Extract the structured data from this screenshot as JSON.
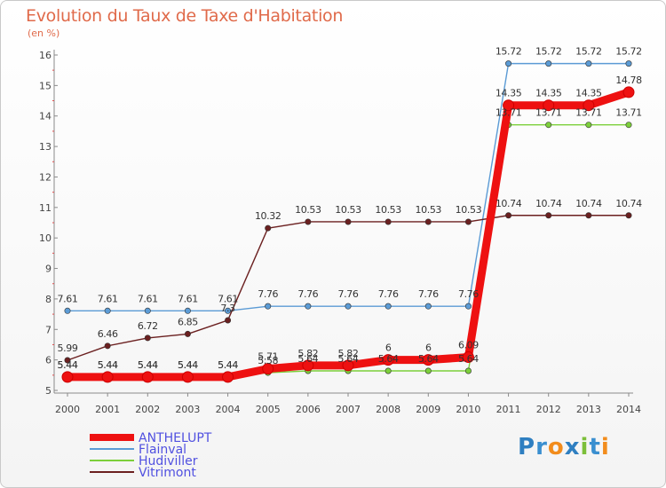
{
  "chart_data": {
    "type": "line",
    "title": "Evolution du Taux de Taxe d'Habitation",
    "unit": "(en %)",
    "x": [
      "2000",
      "2001",
      "2002",
      "2003",
      "2004",
      "2005",
      "2006",
      "2007",
      "2008",
      "2009",
      "2010",
      "2011",
      "2012",
      "2013",
      "2014"
    ],
    "ylim": [
      5,
      16
    ],
    "yticks": [
      5,
      6,
      7,
      8,
      9,
      10,
      11,
      12,
      13,
      14,
      15,
      16
    ],
    "series": [
      {
        "name": "ANTHELUPT",
        "color": "#ee1111",
        "values": [
          5.44,
          5.44,
          5.44,
          5.44,
          5.44,
          5.71,
          5.82,
          5.82,
          6,
          6,
          6.09,
          14.35,
          14.35,
          14.35,
          14.78
        ],
        "labels": [
          "5.44",
          "5.44",
          "5.44",
          "5.44",
          "5.44",
          "5.71",
          "5.82",
          "5.82",
          "6",
          "6",
          "6.09",
          "14.35",
          "14.35",
          "14.35",
          "14.78"
        ]
      },
      {
        "name": "Flainval",
        "color": "#5b9bd5",
        "values": [
          7.61,
          7.61,
          7.61,
          7.61,
          7.61,
          7.76,
          7.76,
          7.76,
          7.76,
          7.76,
          7.76,
          15.72,
          15.72,
          15.72,
          15.72
        ],
        "labels": [
          "7.61",
          "7.61",
          "7.61",
          "7.61",
          "7.61",
          "7.76",
          "7.76",
          "7.76",
          "7.76",
          "7.76",
          "7.76",
          "15.72",
          "15.72",
          "15.72",
          "15.72"
        ]
      },
      {
        "name": "Hudiviller",
        "color": "#7ccf3a",
        "values": [
          5.44,
          5.44,
          5.44,
          5.44,
          5.44,
          5.58,
          5.64,
          5.64,
          5.64,
          5.64,
          5.64,
          13.71,
          13.71,
          13.71,
          13.71
        ],
        "labels": [
          "5.44",
          "5.44",
          "5.44",
          "5.44",
          "5.44",
          "5.58",
          "5.64",
          "5.64",
          "5.64",
          "5.64",
          "5.64",
          "13.71",
          "13.71",
          "13.71",
          "13.71"
        ]
      },
      {
        "name": "Vitrimont",
        "color": "#6b2020",
        "values": [
          5.99,
          6.46,
          6.72,
          6.85,
          7.3,
          10.32,
          10.53,
          10.53,
          10.53,
          10.53,
          10.53,
          10.74,
          10.74,
          10.74,
          10.74
        ],
        "labels": [
          "5.99",
          "6.46",
          "6.72",
          "6.85",
          "7.3",
          "10.32",
          "10.53",
          "10.53",
          "10.53",
          "10.53",
          "10.53",
          "10.74",
          "10.74",
          "10.74",
          "10.74"
        ]
      }
    ],
    "legend_placement": "bottom-left",
    "grid": false
  },
  "logo": {
    "text": "Proxiti",
    "letters": [
      {
        "ch": "P",
        "color": "#2f7fc1"
      },
      {
        "ch": "r",
        "color": "#3a8fd0"
      },
      {
        "ch": "o",
        "color": "#f28c1c"
      },
      {
        "ch": "x",
        "color": "#2f7fc1"
      },
      {
        "ch": "i",
        "color": "#7cbf3a"
      },
      {
        "ch": "t",
        "color": "#3a8fd0"
      },
      {
        "ch": "i",
        "color": "#f28c1c"
      }
    ]
  }
}
